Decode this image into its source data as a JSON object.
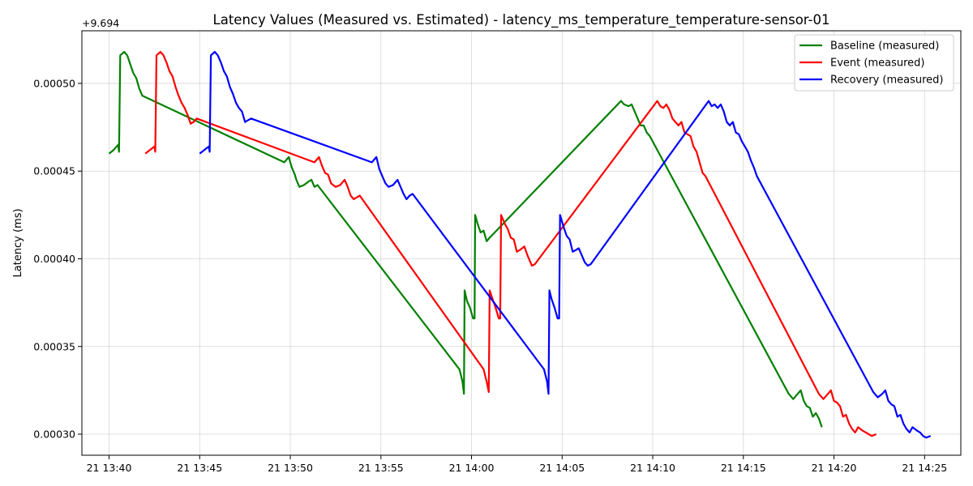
{
  "chart_data": {
    "type": "line",
    "title": "Latency Values (Measured vs. Estimated) - latency_ms_temperature_temperature-sensor-01",
    "xlabel": "",
    "ylabel": "Latency (ms)",
    "y_offset_label": "+9.694",
    "y_offset": 9.694,
    "ylim": [
      0.000288,
      0.00053
    ],
    "x_range": [
      "13:38:30",
      "14:27:00"
    ],
    "x_ticks": [
      {
        "value": "13:40",
        "label": "21 13:40"
      },
      {
        "value": "13:45",
        "label": "21 13:45"
      },
      {
        "value": "13:50",
        "label": "21 13:50"
      },
      {
        "value": "13:55",
        "label": "21 13:55"
      },
      {
        "value": "14:00",
        "label": "21 14:00"
      },
      {
        "value": "14:05",
        "label": "21 14:05"
      },
      {
        "value": "14:10",
        "label": "21 14:10"
      },
      {
        "value": "14:15",
        "label": "21 14:15"
      },
      {
        "value": "14:20",
        "label": "21 14:20"
      },
      {
        "value": "14:25",
        "label": "21 14:25"
      }
    ],
    "y_ticks": [
      {
        "value": 0.0003,
        "label": "0.00030"
      },
      {
        "value": 0.00035,
        "label": "0.00035"
      },
      {
        "value": 0.0004,
        "label": "0.00040"
      },
      {
        "value": 0.00045,
        "label": "0.00045"
      },
      {
        "value": 0.0005,
        "label": "0.00050"
      }
    ],
    "grid": true,
    "legend": "top-right",
    "series": [
      {
        "name": "Baseline (measured)",
        "color": "#008000",
        "points": [
          [
            "13:40:00",
            0.00046
          ],
          [
            "13:40:15",
            0.000462
          ],
          [
            "13:40:30",
            0.000465
          ],
          [
            "13:40:33",
            0.000461
          ],
          [
            "13:40:37",
            0.000516
          ],
          [
            "13:40:50",
            0.000518
          ],
          [
            "13:41:00",
            0.000516
          ],
          [
            "13:41:10",
            0.000511
          ],
          [
            "13:41:20",
            0.000506
          ],
          [
            "13:41:30",
            0.000503
          ],
          [
            "13:41:40",
            0.000497
          ],
          [
            "13:41:50",
            0.000493
          ],
          [
            "13:49:40",
            0.000455
          ],
          [
            "13:49:55",
            0.000458
          ],
          [
            "13:50:05",
            0.000452
          ],
          [
            "13:50:15",
            0.000448
          ],
          [
            "13:50:20",
            0.000445
          ],
          [
            "13:50:30",
            0.000441
          ],
          [
            "13:50:45",
            0.000442
          ],
          [
            "13:51:00",
            0.000444
          ],
          [
            "13:51:10",
            0.000445
          ],
          [
            "13:51:20",
            0.000441
          ],
          [
            "13:51:30",
            0.000442
          ],
          [
            "13:59:20",
            0.000337
          ],
          [
            "13:59:30",
            0.00033
          ],
          [
            "13:59:35",
            0.000323
          ],
          [
            "13:59:37",
            0.000382
          ],
          [
            "13:59:45",
            0.000376
          ],
          [
            "13:59:55",
            0.000372
          ],
          [
            "14:00:05",
            0.000366
          ],
          [
            "14:00:10",
            0.000366
          ],
          [
            "14:00:12",
            0.000425
          ],
          [
            "14:00:20",
            0.00042
          ],
          [
            "14:00:30",
            0.000415
          ],
          [
            "14:00:40",
            0.000416
          ],
          [
            "14:00:50",
            0.00041
          ],
          [
            "14:01:00",
            0.000412
          ],
          [
            "14:08:15",
            0.00049
          ],
          [
            "14:08:25",
            0.000488
          ],
          [
            "14:08:40",
            0.000487
          ],
          [
            "14:08:50",
            0.000488
          ],
          [
            "14:09:00",
            0.000484
          ],
          [
            "14:09:10",
            0.00048
          ],
          [
            "14:09:20",
            0.000476
          ],
          [
            "14:09:30",
            0.000476
          ],
          [
            "14:09:40",
            0.000472
          ],
          [
            "14:09:50",
            0.00047
          ],
          [
            "14:17:30",
            0.000323
          ],
          [
            "14:17:45",
            0.00032
          ],
          [
            "14:18:00",
            0.000323
          ],
          [
            "14:18:10",
            0.000325
          ],
          [
            "14:18:20",
            0.000319
          ],
          [
            "14:18:30",
            0.000316
          ],
          [
            "14:18:40",
            0.000315
          ],
          [
            "14:18:50",
            0.00031
          ],
          [
            "14:19:00",
            0.000312
          ],
          [
            "14:19:10",
            0.000309
          ],
          [
            "14:19:20",
            0.000304
          ]
        ]
      },
      {
        "name": "Event (measured)",
        "color": "#ff0000",
        "points": [
          [
            "13:42:00",
            0.00046
          ],
          [
            "13:42:15",
            0.000462
          ],
          [
            "13:42:30",
            0.000464
          ],
          [
            "13:42:33",
            0.000461
          ],
          [
            "13:42:37",
            0.000516
          ],
          [
            "13:42:50",
            0.000518
          ],
          [
            "13:43:00",
            0.000516
          ],
          [
            "13:43:10",
            0.000512
          ],
          [
            "13:43:20",
            0.000507
          ],
          [
            "13:43:30",
            0.000504
          ],
          [
            "13:43:40",
            0.000498
          ],
          [
            "13:43:50",
            0.000493
          ],
          [
            "13:44:00",
            0.000489
          ],
          [
            "13:44:10",
            0.000486
          ],
          [
            "13:44:20",
            0.000482
          ],
          [
            "13:44:30",
            0.000477
          ],
          [
            "13:44:40",
            0.000478
          ],
          [
            "13:44:50",
            0.00048
          ],
          [
            "13:51:20",
            0.000455
          ],
          [
            "13:51:35",
            0.000458
          ],
          [
            "13:51:45",
            0.000453
          ],
          [
            "13:51:55",
            0.000449
          ],
          [
            "13:52:05",
            0.000448
          ],
          [
            "13:52:15",
            0.000443
          ],
          [
            "13:52:30",
            0.000441
          ],
          [
            "13:52:45",
            0.000442
          ],
          [
            "13:53:00",
            0.000445
          ],
          [
            "13:53:10",
            0.000441
          ],
          [
            "13:53:20",
            0.000436
          ],
          [
            "13:53:30",
            0.000434
          ],
          [
            "13:53:40",
            0.000435
          ],
          [
            "13:53:50",
            0.000436
          ],
          [
            "14:00:40",
            0.000337
          ],
          [
            "14:00:50",
            0.00033
          ],
          [
            "14:00:57",
            0.000324
          ],
          [
            "14:01:00",
            0.000382
          ],
          [
            "14:01:10",
            0.000377
          ],
          [
            "14:01:20",
            0.000372
          ],
          [
            "14:01:30",
            0.000366
          ],
          [
            "14:01:35",
            0.000366
          ],
          [
            "14:01:38",
            0.000425
          ],
          [
            "14:01:50",
            0.00042
          ],
          [
            "14:02:00",
            0.000417
          ],
          [
            "14:02:10",
            0.000412
          ],
          [
            "14:02:20",
            0.000411
          ],
          [
            "14:02:30",
            0.000404
          ],
          [
            "14:02:40",
            0.000405
          ],
          [
            "14:02:55",
            0.000407
          ],
          [
            "14:03:05",
            0.000402
          ],
          [
            "14:03:20",
            0.000396
          ],
          [
            "14:03:30",
            0.000397
          ],
          [
            "14:10:15",
            0.00049
          ],
          [
            "14:10:25",
            0.000487
          ],
          [
            "14:10:35",
            0.000486
          ],
          [
            "14:10:45",
            0.000488
          ],
          [
            "14:10:55",
            0.000485
          ],
          [
            "14:11:05",
            0.00048
          ],
          [
            "14:11:15",
            0.000478
          ],
          [
            "14:11:25",
            0.000476
          ],
          [
            "14:11:35",
            0.000478
          ],
          [
            "14:11:45",
            0.000472
          ],
          [
            "14:11:55",
            0.000471
          ],
          [
            "14:12:05",
            0.00047
          ],
          [
            "14:12:15",
            0.000464
          ],
          [
            "14:12:25",
            0.000461
          ],
          [
            "14:12:35",
            0.000455
          ],
          [
            "14:12:45",
            0.000449
          ],
          [
            "14:12:55",
            0.000447
          ],
          [
            "14:19:10",
            0.000323
          ],
          [
            "14:19:25",
            0.00032
          ],
          [
            "14:19:40",
            0.000323
          ],
          [
            "14:19:50",
            0.000325
          ],
          [
            "14:20:00",
            0.000319
          ],
          [
            "14:20:10",
            0.000318
          ],
          [
            "14:20:20",
            0.000316
          ],
          [
            "14:20:30",
            0.00031
          ],
          [
            "14:20:40",
            0.000311
          ],
          [
            "14:20:50",
            0.000306
          ],
          [
            "14:21:00",
            0.000303
          ],
          [
            "14:21:10",
            0.000301
          ],
          [
            "14:21:20",
            0.000304
          ],
          [
            "14:21:35",
            0.000302
          ],
          [
            "14:21:45",
            0.000301
          ],
          [
            "14:21:55",
            0.0003
          ],
          [
            "14:22:05",
            0.000299
          ],
          [
            "14:22:20",
            0.0003
          ]
        ]
      },
      {
        "name": "Recovery (measured)",
        "color": "#0000ff",
        "points": [
          [
            "13:45:00",
            0.00046
          ],
          [
            "13:45:15",
            0.000462
          ],
          [
            "13:45:30",
            0.000464
          ],
          [
            "13:45:33",
            0.000461
          ],
          [
            "13:45:37",
            0.000516
          ],
          [
            "13:45:50",
            0.000518
          ],
          [
            "13:46:00",
            0.000516
          ],
          [
            "13:46:10",
            0.000512
          ],
          [
            "13:46:20",
            0.000507
          ],
          [
            "13:46:30",
            0.000504
          ],
          [
            "13:46:40",
            0.000498
          ],
          [
            "13:46:50",
            0.000494
          ],
          [
            "13:47:00",
            0.000489
          ],
          [
            "13:47:10",
            0.000486
          ],
          [
            "13:47:20",
            0.000484
          ],
          [
            "13:47:30",
            0.000478
          ],
          [
            "13:47:40",
            0.000479
          ],
          [
            "13:47:50",
            0.00048
          ],
          [
            "13:54:30",
            0.000455
          ],
          [
            "13:54:45",
            0.000458
          ],
          [
            "13:54:55",
            0.000451
          ],
          [
            "13:55:05",
            0.000447
          ],
          [
            "13:55:15",
            0.000443
          ],
          [
            "13:55:25",
            0.000441
          ],
          [
            "13:55:40",
            0.000442
          ],
          [
            "13:55:55",
            0.000445
          ],
          [
            "13:56:05",
            0.000441
          ],
          [
            "13:56:15",
            0.000437
          ],
          [
            "13:56:25",
            0.000434
          ],
          [
            "13:56:35",
            0.000436
          ],
          [
            "13:56:45",
            0.000437
          ],
          [
            "14:04:00",
            0.000337
          ],
          [
            "14:04:10",
            0.00033
          ],
          [
            "14:04:15",
            0.000323
          ],
          [
            "14:04:18",
            0.000382
          ],
          [
            "14:04:25",
            0.000377
          ],
          [
            "14:04:35",
            0.000372
          ],
          [
            "14:04:45",
            0.000366
          ],
          [
            "14:04:50",
            0.000366
          ],
          [
            "14:04:53",
            0.000425
          ],
          [
            "14:05:05",
            0.000418
          ],
          [
            "14:05:15",
            0.000413
          ],
          [
            "14:05:25",
            0.000411
          ],
          [
            "14:05:35",
            0.000404
          ],
          [
            "14:05:45",
            0.000405
          ],
          [
            "14:05:55",
            0.000406
          ],
          [
            "14:06:05",
            0.000402
          ],
          [
            "14:06:15",
            0.000398
          ],
          [
            "14:06:25",
            0.000396
          ],
          [
            "14:06:35",
            0.000397
          ],
          [
            "14:13:05",
            0.00049
          ],
          [
            "14:13:15",
            0.000487
          ],
          [
            "14:13:25",
            0.000488
          ],
          [
            "14:13:35",
            0.000486
          ],
          [
            "14:13:45",
            0.000488
          ],
          [
            "14:13:55",
            0.000484
          ],
          [
            "14:14:05",
            0.000478
          ],
          [
            "14:14:15",
            0.000476
          ],
          [
            "14:14:25",
            0.000478
          ],
          [
            "14:14:35",
            0.000472
          ],
          [
            "14:14:45",
            0.000471
          ],
          [
            "14:14:55",
            0.000467
          ],
          [
            "14:15:05",
            0.000464
          ],
          [
            "14:15:15",
            0.000461
          ],
          [
            "14:15:25",
            0.000456
          ],
          [
            "14:15:35",
            0.000452
          ],
          [
            "14:15:45",
            0.000447
          ],
          [
            "14:22:10",
            0.000324
          ],
          [
            "14:22:25",
            0.000321
          ],
          [
            "14:22:40",
            0.000323
          ],
          [
            "14:22:50",
            0.000325
          ],
          [
            "14:23:00",
            0.000319
          ],
          [
            "14:23:10",
            0.000317
          ],
          [
            "14:23:20",
            0.000316
          ],
          [
            "14:23:30",
            0.00031
          ],
          [
            "14:23:40",
            0.000311
          ],
          [
            "14:23:50",
            0.000306
          ],
          [
            "14:24:00",
            0.000303
          ],
          [
            "14:24:10",
            0.000301
          ],
          [
            "14:24:20",
            0.000304
          ],
          [
            "14:24:35",
            0.000302
          ],
          [
            "14:24:45",
            0.000301
          ],
          [
            "14:24:55",
            0.000299
          ],
          [
            "14:25:05",
            0.000298
          ],
          [
            "14:25:20",
            0.000299
          ]
        ]
      }
    ]
  }
}
